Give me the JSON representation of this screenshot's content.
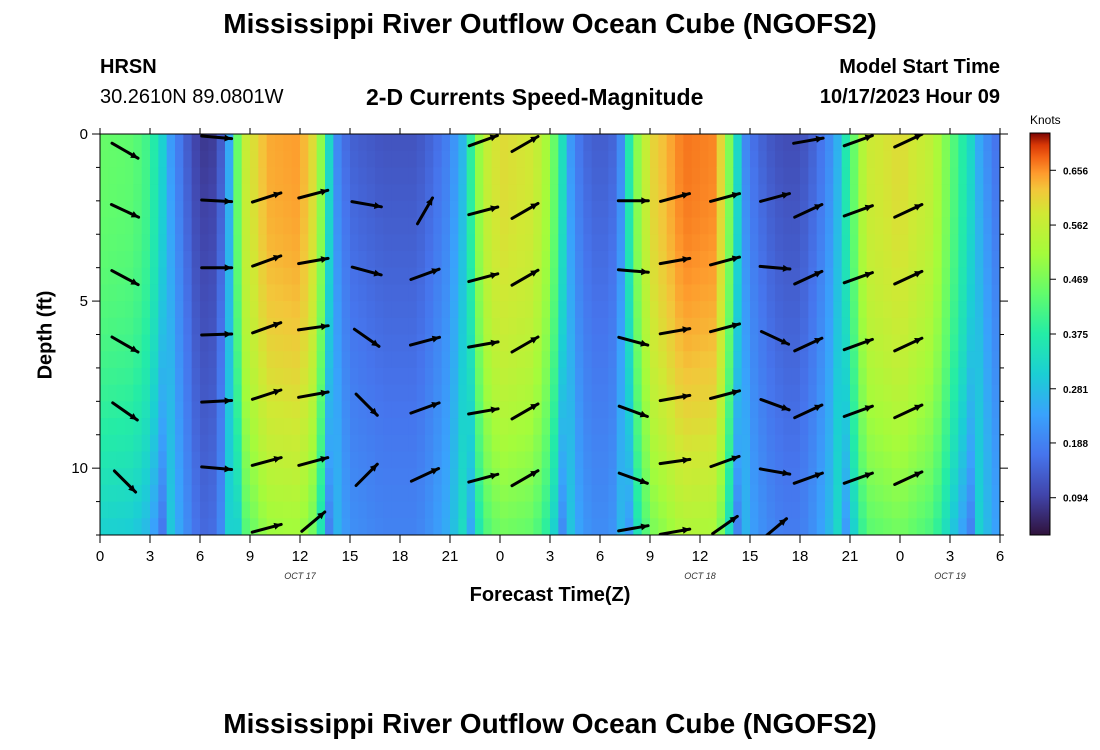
{
  "title": "Mississippi River Outflow Ocean Cube (NGOFS2)",
  "title_repeat": "Mississippi River Outflow Ocean Cube (NGOFS2)",
  "station": "HRSN",
  "coordinates": "30.2610N  89.0801W",
  "model_start_label": "Model Start Time",
  "model_start_value": "10/17/2023 Hour 09",
  "colorbar_unit": "Knots",
  "chart_data": {
    "type": "heatmap",
    "title": "2-D Currents Speed-Magnitude",
    "xlabel": "Forecast Time(Z)",
    "ylabel": "Depth (ft)",
    "x_ticks": [
      "0",
      "3",
      "6",
      "9",
      "12",
      "15",
      "18",
      "21",
      "0",
      "3",
      "6",
      "9",
      "12",
      "15",
      "18",
      "21",
      "0",
      "3",
      "6"
    ],
    "y_ticks": [
      "0",
      "5",
      "10"
    ],
    "date_labels": [
      {
        "label": "OCT 17",
        "hour": 12
      },
      {
        "label": "OCT 18",
        "hour": 36
      },
      {
        "label": "OCT 19",
        "hour": 51
      }
    ],
    "x_range_hours": [
      0,
      54
    ],
    "depth_range_ft": [
      0,
      12
    ],
    "colorbar_ticks": [
      "0.656",
      "0.562",
      "0.469",
      "0.375",
      "0.281",
      "0.188",
      "0.094"
    ],
    "colorbar_range": [
      0.03,
      0.72
    ],
    "speed_profile": {
      "hours": [
        0,
        2,
        3,
        4,
        5,
        6,
        7,
        7.5,
        8,
        8.5,
        10,
        12,
        13,
        13.5,
        14,
        14.5,
        15,
        17,
        19,
        20,
        21,
        22,
        22.5,
        23,
        24,
        26,
        27,
        27.5,
        28,
        28.5,
        29,
        30,
        31,
        31.5,
        32,
        33,
        35,
        37,
        37.5,
        38,
        38.5,
        39,
        40,
        41,
        42,
        43,
        44,
        45,
        45.5,
        46,
        48,
        50,
        51,
        52,
        53,
        54
      ],
      "speed": [
        0.45,
        0.44,
        0.4,
        0.28,
        0.18,
        0.11,
        0.12,
        0.2,
        0.35,
        0.55,
        0.64,
        0.65,
        0.58,
        0.4,
        0.25,
        0.2,
        0.17,
        0.15,
        0.15,
        0.18,
        0.22,
        0.32,
        0.45,
        0.55,
        0.6,
        0.58,
        0.5,
        0.4,
        0.28,
        0.22,
        0.18,
        0.16,
        0.18,
        0.28,
        0.45,
        0.6,
        0.67,
        0.66,
        0.55,
        0.4,
        0.25,
        0.2,
        0.16,
        0.14,
        0.14,
        0.18,
        0.25,
        0.4,
        0.5,
        0.57,
        0.6,
        0.55,
        0.45,
        0.35,
        0.25,
        0.18
      ]
    },
    "arrows": [
      {
        "hour": 1.5,
        "depths": [
          0.5,
          2.3,
          4.3,
          6.3,
          8.3,
          10.4
        ],
        "angles": [
          30,
          25,
          28,
          30,
          35,
          45
        ]
      },
      {
        "hour": 7.0,
        "depths": [
          0.1,
          2.0,
          4.0,
          6.0,
          8.0,
          10.0
        ],
        "angles": [
          5,
          3,
          0,
          -2,
          -3,
          5
        ]
      },
      {
        "hour": 10.0,
        "depths": [
          1.9,
          3.8,
          5.8,
          7.8,
          9.8,
          11.8
        ],
        "angles": [
          -18,
          -20,
          -20,
          -18,
          -15,
          -15
        ]
      },
      {
        "hour": 12.8,
        "depths": [
          1.8,
          3.8,
          5.8,
          7.8,
          9.8,
          11.6
        ],
        "angles": [
          -15,
          -10,
          -8,
          -10,
          -15,
          -40
        ]
      },
      {
        "hour": 16.0,
        "depths": [
          2.1,
          4.1,
          6.1,
          8.1,
          10.2
        ],
        "angles": [
          10,
          15,
          35,
          45,
          -45
        ]
      },
      {
        "hour": 19.5,
        "depths": [
          2.3,
          4.2,
          6.2,
          8.2,
          10.2
        ],
        "angles": [
          -60,
          -20,
          -15,
          -20,
          -25
        ]
      },
      {
        "hour": 23.0,
        "depths": [
          0.2,
          2.3,
          4.3,
          6.3,
          8.3,
          10.3
        ],
        "angles": [
          -20,
          -15,
          -15,
          -10,
          -10,
          -15
        ]
      },
      {
        "hour": 25.5,
        "depths": [
          0.3,
          2.3,
          4.3,
          6.3,
          8.3,
          10.3
        ],
        "angles": [
          -30,
          -30,
          -30,
          -30,
          -30,
          -30
        ]
      },
      {
        "hour": 32.0,
        "depths": [
          2.0,
          4.1,
          6.2,
          8.3,
          10.3,
          11.8
        ],
        "angles": [
          0,
          5,
          15,
          20,
          20,
          -10
        ]
      },
      {
        "hour": 34.5,
        "depths": [
          1.9,
          3.8,
          5.9,
          7.9,
          9.8,
          11.9
        ],
        "angles": [
          -15,
          -10,
          -10,
          -10,
          -8,
          -10
        ]
      },
      {
        "hour": 37.5,
        "depths": [
          1.9,
          3.8,
          5.8,
          7.8,
          9.8,
          11.7
        ],
        "angles": [
          -15,
          -15,
          -15,
          -15,
          -20,
          -35
        ]
      },
      {
        "hour": 40.5,
        "depths": [
          1.9,
          4.0,
          6.1,
          8.1,
          10.1,
          11.8
        ],
        "angles": [
          -15,
          5,
          25,
          20,
          10,
          -40
        ]
      },
      {
        "hour": 42.5,
        "depths": [
          0.2,
          2.3,
          4.3,
          6.3,
          8.3,
          10.3
        ],
        "angles": [
          -10,
          -25,
          -25,
          -25,
          -25,
          -20
        ]
      },
      {
        "hour": 45.5,
        "depths": [
          0.2,
          2.3,
          4.3,
          6.3,
          8.3,
          10.3
        ],
        "angles": [
          -20,
          -20,
          -20,
          -20,
          -20,
          -20
        ]
      },
      {
        "hour": 48.5,
        "depths": [
          0.2,
          2.3,
          4.3,
          6.3,
          8.3,
          10.3
        ],
        "angles": [
          -25,
          -25,
          -25,
          -25,
          -25,
          -25
        ]
      }
    ]
  }
}
